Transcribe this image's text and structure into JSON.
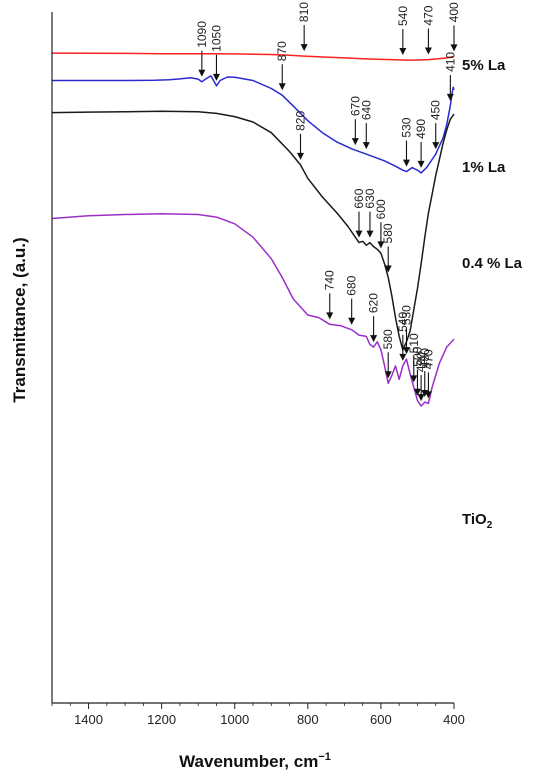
{
  "chart_data": {
    "type": "line",
    "xlabel": "Wavenumber, cm",
    "xlabel_sup": "−1",
    "ylabel": "Transmittance, (a.u.)",
    "xlim": [
      1500,
      400
    ],
    "x_ticks": [
      1400,
      1200,
      1000,
      800,
      600,
      400
    ],
    "x_tick_labels": [
      "1400",
      "1200",
      "1000",
      "800",
      "600",
      "400"
    ],
    "grid": false,
    "legend": "labels at right end of each curve",
    "series": [
      {
        "name": "5% La",
        "name_main": "5% La",
        "name_sub": "",
        "color": "#ff2020",
        "points": [
          [
            1500,
            -0.07
          ],
          [
            1400,
            -0.067
          ],
          [
            1300,
            -0.06
          ],
          [
            1200,
            -0.045
          ],
          [
            1100,
            -0.05
          ],
          [
            1000,
            -0.04
          ],
          [
            900,
            -0.02
          ],
          [
            850,
            0.01
          ],
          [
            810,
            0.04
          ],
          [
            750,
            0.08
          ],
          [
            700,
            0.11
          ],
          [
            650,
            0.14
          ],
          [
            600,
            0.165
          ],
          [
            560,
            0.18
          ],
          [
            530,
            0.19
          ],
          [
            500,
            0.185
          ],
          [
            470,
            0.17
          ],
          [
            440,
            0.14
          ],
          [
            420,
            0.11
          ],
          [
            410,
            0.08
          ],
          [
            400,
            0.05
          ]
        ],
        "peaks": [
          {
            "x": 810,
            "label": "810"
          },
          {
            "x": 540,
            "label": "540"
          },
          {
            "x": 470,
            "label": "470"
          },
          {
            "x": 400,
            "label": "400"
          }
        ]
      },
      {
        "name": "1% La",
        "name_main": "1% La",
        "name_sub": "",
        "color": "#2a2ad0",
        "points": [
          [
            1500,
            0.95
          ],
          [
            1400,
            0.95
          ],
          [
            1300,
            0.95
          ],
          [
            1220,
            0.94
          ],
          [
            1180,
            0.92
          ],
          [
            1150,
            0.89
          ],
          [
            1120,
            0.85
          ],
          [
            1100,
            0.9
          ],
          [
            1090,
            1.0
          ],
          [
            1080,
            0.9
          ],
          [
            1065,
            0.78
          ],
          [
            1050,
            1.15
          ],
          [
            1040,
            0.95
          ],
          [
            1020,
            0.82
          ],
          [
            1000,
            0.83
          ],
          [
            950,
            0.95
          ],
          [
            900,
            1.25
          ],
          [
            870,
            1.5
          ],
          [
            840,
            1.9
          ],
          [
            800,
            2.45
          ],
          [
            760,
            2.9
          ],
          [
            720,
            3.25
          ],
          [
            680,
            3.5
          ],
          [
            650,
            3.65
          ],
          [
            620,
            3.8
          ],
          [
            590,
            3.95
          ],
          [
            560,
            4.15
          ],
          [
            540,
            4.3
          ],
          [
            530,
            4.35
          ],
          [
            515,
            4.2
          ],
          [
            500,
            4.3
          ],
          [
            490,
            4.4
          ],
          [
            475,
            4.2
          ],
          [
            460,
            3.9
          ],
          [
            450,
            3.7
          ],
          [
            430,
            3.1
          ],
          [
            420,
            2.6
          ],
          [
            410,
            1.9
          ],
          [
            405,
            1.4
          ],
          [
            402,
            1.2
          ],
          [
            400,
            1.3
          ]
        ],
        "peaks": [
          {
            "x": 1090,
            "label": "1090"
          },
          {
            "x": 1050,
            "label": "1050"
          },
          {
            "x": 870,
            "label": "870"
          },
          {
            "x": 670,
            "label": "670"
          },
          {
            "x": 640,
            "label": "640"
          },
          {
            "x": 530,
            "label": "530"
          },
          {
            "x": 490,
            "label": "490"
          },
          {
            "x": 450,
            "label": "450"
          },
          {
            "x": 410,
            "label": "410"
          }
        ]
      },
      {
        "name": "0.4 % La",
        "name_main": "0.4 % La",
        "name_sub": "",
        "color": "#1a1a1a",
        "points": [
          [
            1500,
            2.15
          ],
          [
            1400,
            2.13
          ],
          [
            1300,
            2.12
          ],
          [
            1200,
            2.1
          ],
          [
            1100,
            2.12
          ],
          [
            1050,
            2.18
          ],
          [
            1000,
            2.3
          ],
          [
            950,
            2.5
          ],
          [
            900,
            2.9
          ],
          [
            850,
            3.6
          ],
          [
            820,
            4.1
          ],
          [
            800,
            4.6
          ],
          [
            760,
            5.3
          ],
          [
            720,
            5.9
          ],
          [
            690,
            6.4
          ],
          [
            670,
            6.8
          ],
          [
            660,
            7.0
          ],
          [
            650,
            6.95
          ],
          [
            640,
            7.1
          ],
          [
            630,
            7.0
          ],
          [
            620,
            7.15
          ],
          [
            610,
            7.25
          ],
          [
            600,
            7.4
          ],
          [
            590,
            7.8
          ],
          [
            580,
            8.3
          ],
          [
            570,
            9.0
          ],
          [
            560,
            9.8
          ],
          [
            550,
            10.5
          ],
          [
            540,
            11.0
          ],
          [
            530,
            10.7
          ],
          [
            520,
            10.3
          ],
          [
            510,
            9.5
          ],
          [
            500,
            8.7
          ],
          [
            490,
            7.8
          ],
          [
            480,
            6.8
          ],
          [
            470,
            5.9
          ],
          [
            460,
            5.2
          ],
          [
            450,
            4.5
          ],
          [
            440,
            3.9
          ],
          [
            430,
            3.3
          ],
          [
            420,
            2.8
          ],
          [
            410,
            2.4
          ],
          [
            400,
            2.2
          ]
        ],
        "peaks": [
          {
            "x": 820,
            "label": "820"
          },
          {
            "x": 660,
            "label": "660"
          },
          {
            "x": 630,
            "label": "630"
          },
          {
            "x": 600,
            "label": "600"
          },
          {
            "x": 580,
            "label": "580"
          }
        ]
      },
      {
        "name": "TiO2",
        "name_main": "TiO",
        "name_sub": "2",
        "color": "#9a2fc8",
        "points": [
          [
            1500,
            6.1
          ],
          [
            1400,
            6.0
          ],
          [
            1300,
            5.95
          ],
          [
            1200,
            5.92
          ],
          [
            1100,
            5.95
          ],
          [
            1050,
            6.05
          ],
          [
            1000,
            6.3
          ],
          [
            950,
            6.8
          ],
          [
            900,
            7.6
          ],
          [
            870,
            8.3
          ],
          [
            840,
            9.1
          ],
          [
            800,
            9.7
          ],
          [
            770,
            9.8
          ],
          [
            740,
            10.05
          ],
          [
            710,
            10.1
          ],
          [
            690,
            10.2
          ],
          [
            680,
            10.25
          ],
          [
            660,
            10.45
          ],
          [
            640,
            10.5
          ],
          [
            630,
            10.8
          ],
          [
            620,
            10.9
          ],
          [
            610,
            10.7
          ],
          [
            600,
            11.0
          ],
          [
            590,
            11.6
          ],
          [
            580,
            12.25
          ],
          [
            570,
            11.95
          ],
          [
            560,
            11.6
          ],
          [
            550,
            12.1
          ],
          [
            540,
            11.6
          ],
          [
            530,
            11.35
          ],
          [
            520,
            11.9
          ],
          [
            510,
            12.4
          ],
          [
            500,
            12.9
          ],
          [
            490,
            13.1
          ],
          [
            480,
            12.95
          ],
          [
            470,
            13.0
          ],
          [
            460,
            12.4
          ],
          [
            440,
            11.5
          ],
          [
            420,
            10.9
          ],
          [
            400,
            10.6
          ]
        ],
        "peaks": [
          {
            "x": 740,
            "label": "740"
          },
          {
            "x": 680,
            "label": "680"
          },
          {
            "x": 620,
            "label": "620"
          },
          {
            "x": 580,
            "label": "580"
          },
          {
            "x": 540,
            "label": "540"
          },
          {
            "x": 530,
            "label": "530"
          },
          {
            "x": 510,
            "label": "510"
          },
          {
            "x": 500,
            "label": "500"
          },
          {
            "x": 480,
            "label": "480"
          },
          {
            "x": 490,
            "label": "490"
          },
          {
            "x": 470,
            "label": "470"
          }
        ]
      }
    ]
  }
}
